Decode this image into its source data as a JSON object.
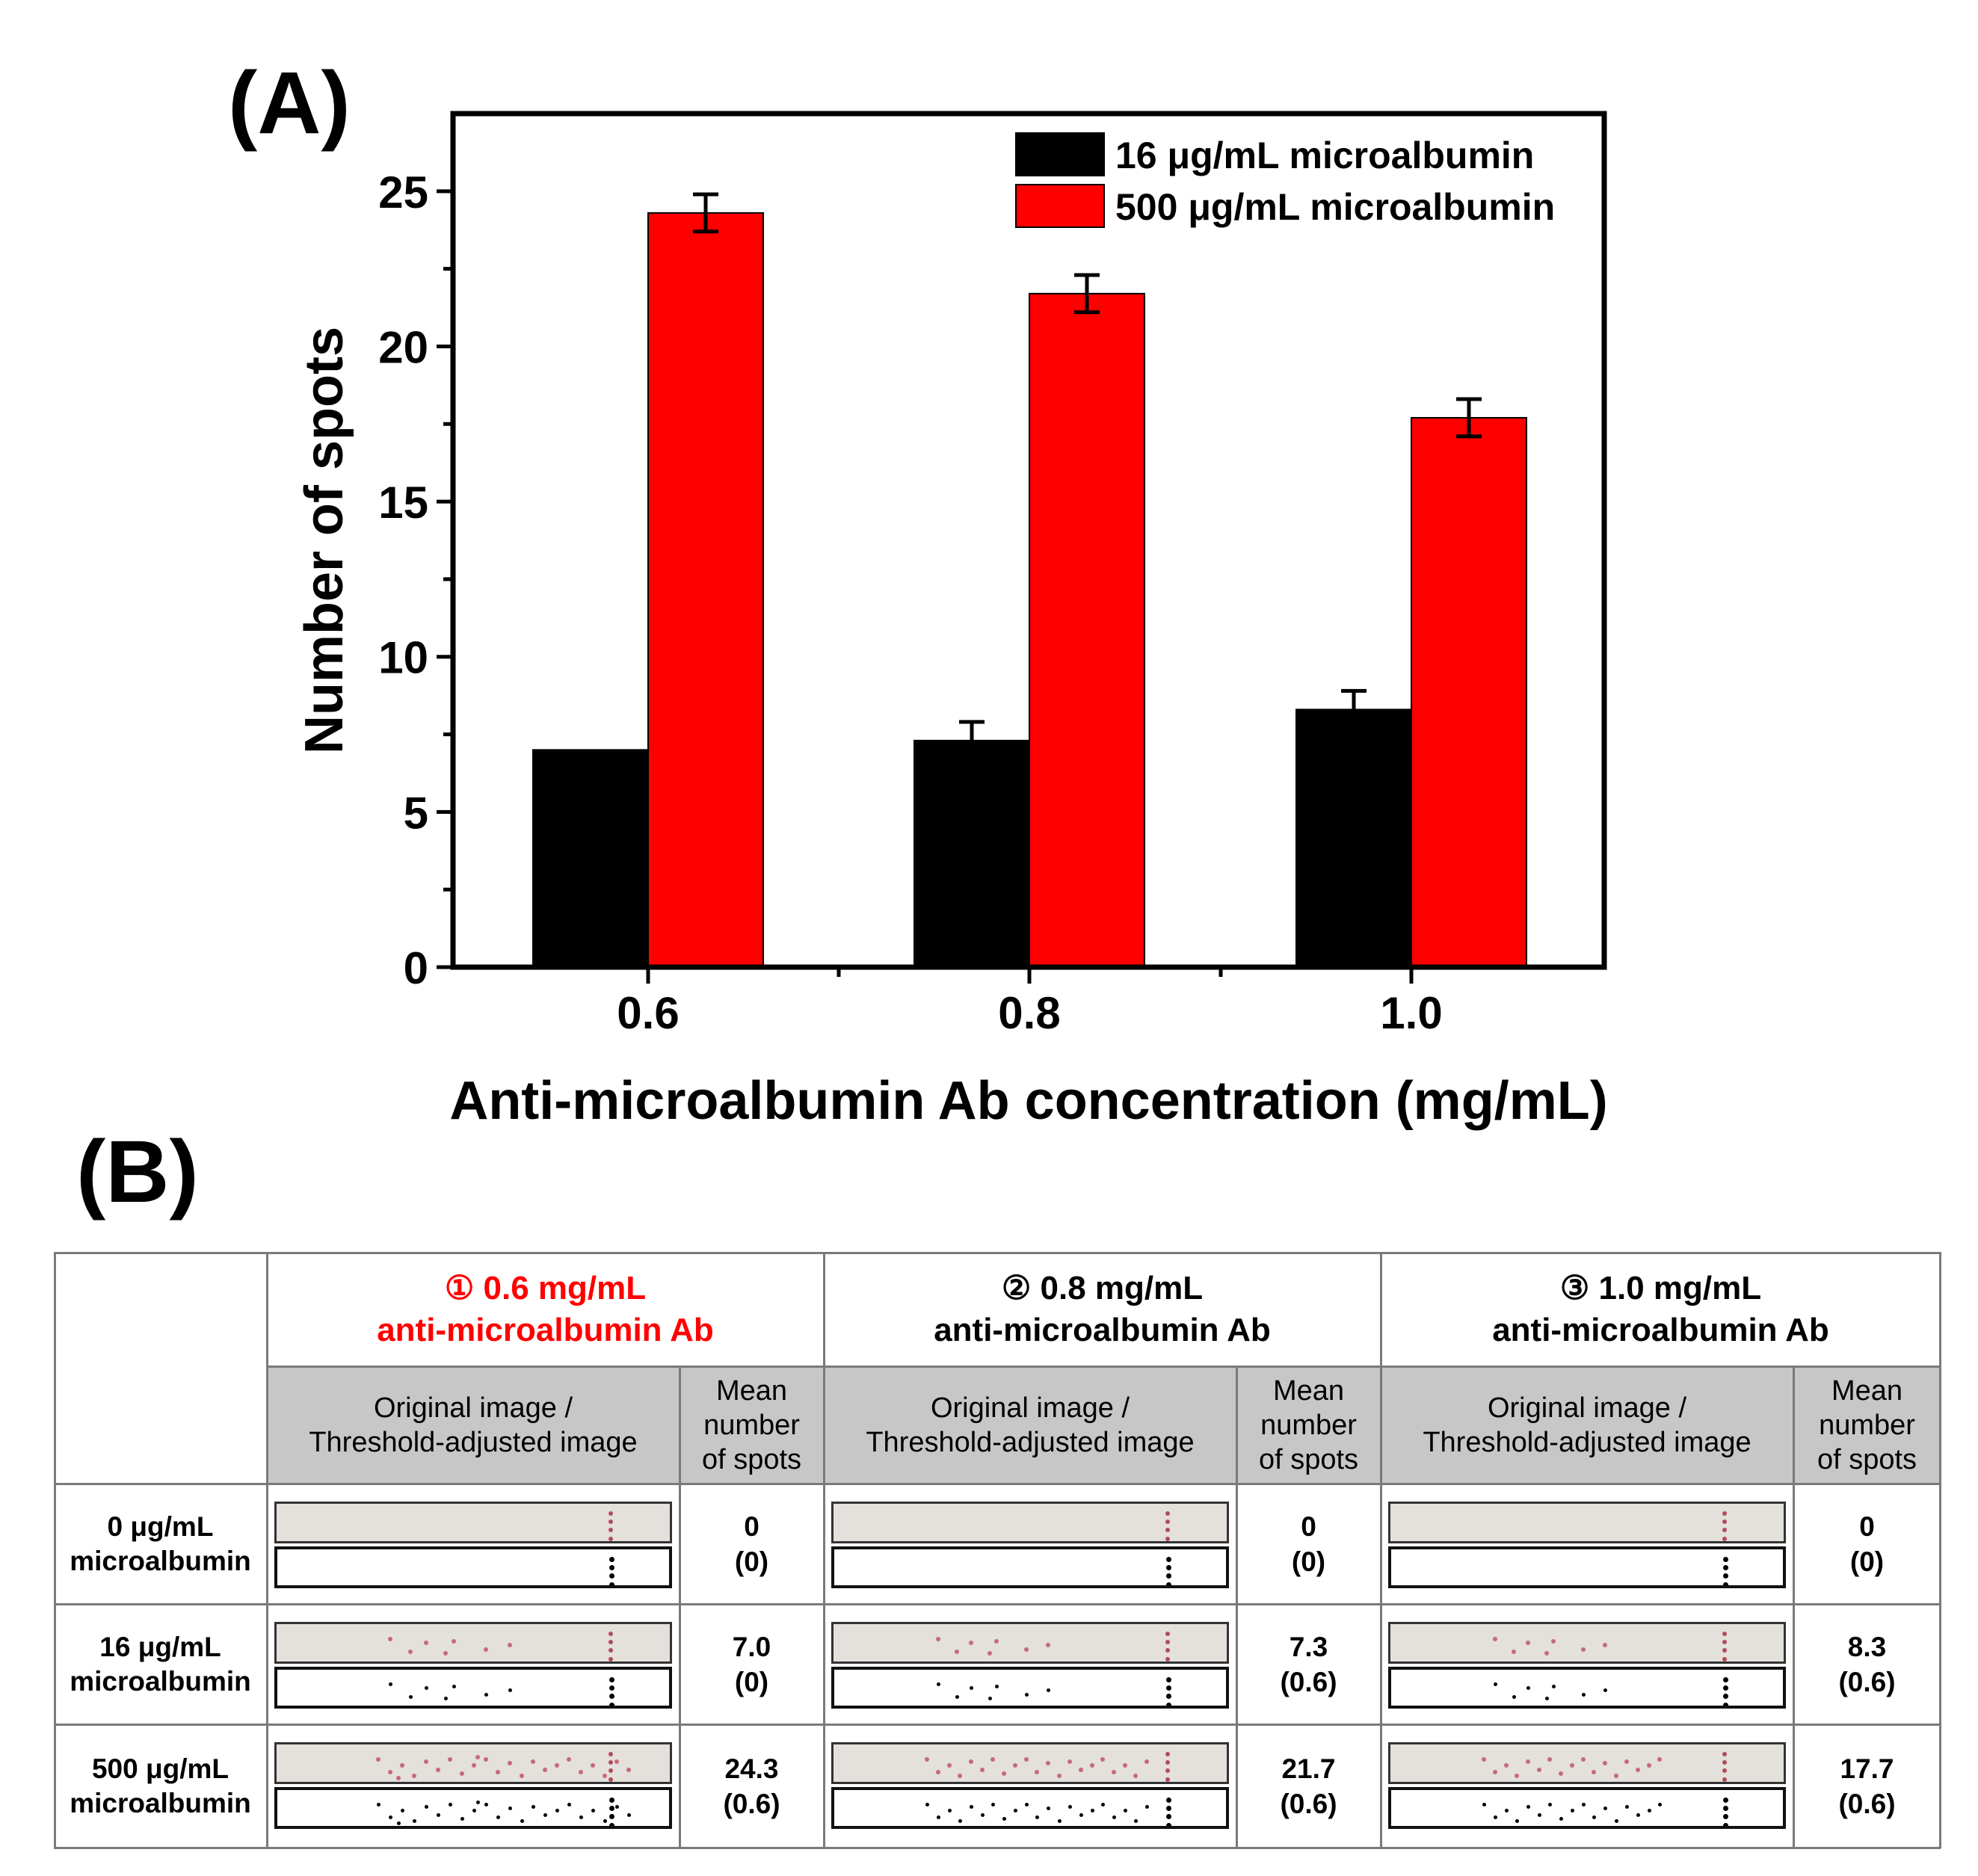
{
  "panel_labels": {
    "a": "(A)",
    "b": "(B)"
  },
  "chart_data": {
    "type": "bar",
    "title": "",
    "xlabel": "Anti-microalbumin Ab concentration (mg/mL)",
    "ylabel": "Number of spots",
    "categories": [
      "0.6",
      "0.8",
      "1.0"
    ],
    "ylim": [
      0,
      27.5
    ],
    "yticks": [
      "0",
      "5",
      "10",
      "15",
      "20",
      "25"
    ],
    "legend_position": "top-right",
    "series": [
      {
        "name": "16 μg/mL microalbumin",
        "color": "#000000",
        "values": [
          7.0,
          7.3,
          8.3
        ],
        "errors": [
          0,
          0.6,
          0.6
        ]
      },
      {
        "name": "500 μg/mL microalbumin",
        "color": "#ff0000",
        "values": [
          24.3,
          21.7,
          17.7
        ],
        "errors": [
          0.6,
          0.6,
          0.6
        ]
      }
    ]
  },
  "table": {
    "groups": [
      {
        "marker": "①",
        "title1": "0.6 mg/mL",
        "title2": "anti-microalbumin Ab",
        "color": "#ff0000"
      },
      {
        "marker": "②",
        "title1": "0.8 mg/mL",
        "title2": "anti-microalbumin Ab",
        "color": "#000000"
      },
      {
        "marker": "③",
        "title1": "1.0 mg/mL",
        "title2": "anti-microalbumin Ab",
        "color": "#000000"
      }
    ],
    "subheaders": {
      "image_line1": "Original image /",
      "image_line2": "Threshold-adjusted image",
      "mean_line1": "Mean",
      "mean_line2": "number",
      "mean_line3": "of spots"
    },
    "rows": [
      {
        "label1": "0 μg/mL",
        "label2": "microalbumin",
        "values": [
          {
            "mean": "0",
            "sd": "(0)"
          },
          {
            "mean": "0",
            "sd": "(0)"
          },
          {
            "mean": "0",
            "sd": "(0)"
          }
        ]
      },
      {
        "label1": "16 μg/mL",
        "label2": "microalbumin",
        "values": [
          {
            "mean": "7.0",
            "sd": "(0)"
          },
          {
            "mean": "7.3",
            "sd": "(0.6)"
          },
          {
            "mean": "8.3",
            "sd": "(0.6)"
          }
        ]
      },
      {
        "label1": "500 μg/mL",
        "label2": "microalbumin",
        "values": [
          {
            "mean": "24.3",
            "sd": "(0.6)"
          },
          {
            "mean": "21.7",
            "sd": "(0.6)"
          },
          {
            "mean": "17.7",
            "sd": "(0.6)"
          }
        ]
      }
    ]
  }
}
